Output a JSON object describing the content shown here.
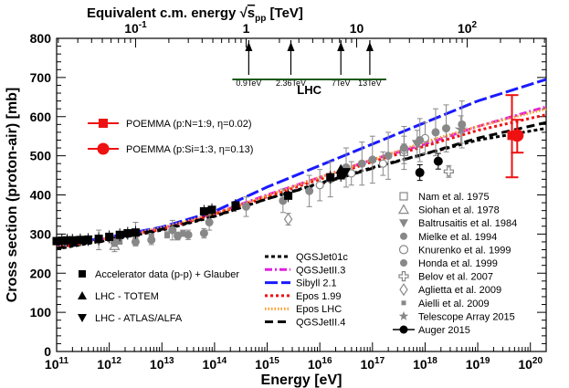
{
  "chart_data": {
    "type": "scatter",
    "title": "",
    "top_axis_label": "Equivalent c.m. energy",
    "top_axis_sqrt": "√",
    "top_axis_s": "s",
    "top_axis_sub": "pp",
    "top_axis_unit": "[TeV]",
    "xlabel": "Energy   [eV]",
    "ylabel": "Cross section (proton-air)  [mb]",
    "x_log_range": [
      11,
      20.3
    ],
    "ylim": [
      0,
      800
    ],
    "y_ticks": [
      "0",
      "100",
      "200",
      "300",
      "400",
      "500",
      "600",
      "700",
      "800"
    ],
    "x_ticks": [
      {
        "base": "10",
        "exp": "11"
      },
      {
        "base": "10",
        "exp": "12"
      },
      {
        "base": "10",
        "exp": "13"
      },
      {
        "base": "10",
        "exp": "14"
      },
      {
        "base": "10",
        "exp": "15"
      },
      {
        "base": "10",
        "exp": "16"
      },
      {
        "base": "10",
        "exp": "17"
      },
      {
        "base": "10",
        "exp": "18"
      },
      {
        "base": "10",
        "exp": "19"
      },
      {
        "base": "10",
        "exp": "20"
      }
    ],
    "top_ticks": [
      {
        "label": "10",
        "exp": "-1",
        "logE": 12.5
      },
      {
        "label": "1",
        "exp": "",
        "logE": 14.6
      },
      {
        "label": "10",
        "exp": "",
        "logE": 16.7
      },
      {
        "label": "10",
        "exp": "2",
        "logE": 18.8
      }
    ],
    "lhc": {
      "label": "LHC",
      "arrows": [
        {
          "label": "0.9TeV",
          "logE": 14.65
        },
        {
          "label": "2.36TeV",
          "logE": 15.45
        },
        {
          "label": "7TeV",
          "logE": 16.4
        },
        {
          "label": "13TeV",
          "logE": 16.95
        }
      ]
    },
    "models": [
      {
        "name": "QGSJet01c",
        "color": "#000000",
        "dash": "4,3",
        "points": [
          [
            11,
            262
          ],
          [
            12,
            285
          ],
          [
            13,
            310
          ],
          [
            14,
            345
          ],
          [
            15,
            390
          ],
          [
            16,
            430
          ],
          [
            17,
            470
          ],
          [
            18,
            505
          ],
          [
            19,
            540
          ],
          [
            20.3,
            570
          ]
        ]
      },
      {
        "name": "QGSJetII.3",
        "color": "#e020e0",
        "dash": "8,3,2,3",
        "points": [
          [
            11,
            268
          ],
          [
            12,
            290
          ],
          [
            13,
            315
          ],
          [
            14,
            352
          ],
          [
            15,
            400
          ],
          [
            16,
            445
          ],
          [
            17,
            490
          ],
          [
            18,
            530
          ],
          [
            19,
            575
          ],
          [
            20.3,
            625
          ]
        ]
      },
      {
        "name": "Sibyll 2.1",
        "color": "#1a1aff",
        "dash": "14,4",
        "points": [
          [
            11,
            270
          ],
          [
            12,
            292
          ],
          [
            13,
            318
          ],
          [
            14,
            358
          ],
          [
            15,
            420
          ],
          [
            16,
            475
          ],
          [
            17,
            530
          ],
          [
            18,
            585
          ],
          [
            19,
            640
          ],
          [
            20.3,
            695
          ]
        ]
      },
      {
        "name": "Epos 1.99",
        "color": "#ee1111",
        "dash": "3,3",
        "points": [
          [
            11,
            265
          ],
          [
            12,
            288
          ],
          [
            13,
            312
          ],
          [
            14,
            350
          ],
          [
            15,
            395
          ],
          [
            16,
            440
          ],
          [
            17,
            485
          ],
          [
            18,
            525
          ],
          [
            19,
            565
          ],
          [
            20.3,
            605
          ]
        ]
      },
      {
        "name": "Epos LHC",
        "color": "#ff9922",
        "dash": "1.5,2",
        "points": [
          [
            11,
            267
          ],
          [
            12,
            290
          ],
          [
            13,
            316
          ],
          [
            14,
            352
          ],
          [
            15,
            398
          ],
          [
            16,
            445
          ],
          [
            17,
            490
          ],
          [
            18,
            535
          ],
          [
            19,
            575
          ],
          [
            20.3,
            620
          ]
        ]
      },
      {
        "name": "QGSJetII.4",
        "color": "#000000",
        "dash": "9,5",
        "points": [
          [
            11,
            263
          ],
          [
            12,
            287
          ],
          [
            13,
            312
          ],
          [
            14,
            346
          ],
          [
            15,
            390
          ],
          [
            16,
            428
          ],
          [
            17,
            468
          ],
          [
            18,
            505
          ],
          [
            19,
            545
          ],
          [
            20.3,
            585
          ]
        ]
      }
    ],
    "measurements": [
      {
        "name": "Nam et al. 1975",
        "marker": "open-square",
        "color": "#888888",
        "points": [
          [
            17.6,
            510,
            20
          ]
        ]
      },
      {
        "name": "Siohan et al. 1978",
        "marker": "open-triangle",
        "color": "#888888",
        "points": [
          [
            12.1,
            270,
            15
          ]
        ]
      },
      {
        "name": "Baltrusaitis et al. 1984",
        "marker": "filled-triangle-down",
        "color": "#888888",
        "points": [
          [
            17.85,
            530,
            35
          ]
        ]
      },
      {
        "name": "Mielke et al. 1994",
        "marker": "filled-circle",
        "color": "#888888",
        "points": [
          [
            12.1,
            278,
            10
          ],
          [
            12.5,
            280,
            10
          ],
          [
            12.8,
            285,
            12
          ],
          [
            13.3,
            295,
            10
          ],
          [
            13.5,
            298,
            12
          ],
          [
            13.8,
            302,
            12
          ]
        ]
      },
      {
        "name": "Knurenko et al. 1999",
        "marker": "open-circle",
        "color": "#888888",
        "points": [
          [
            16.0,
            425,
            40
          ],
          [
            16.6,
            455,
            30
          ],
          [
            17.2,
            480,
            30
          ],
          [
            17.6,
            515,
            35
          ],
          [
            18.0,
            545,
            40
          ]
        ]
      },
      {
        "name": "Honda et al. 1999",
        "marker": "filled-circle",
        "color": "#888888",
        "points": [
          [
            11.8,
            285,
            25
          ],
          [
            12.5,
            300,
            30
          ],
          [
            13.2,
            310,
            25
          ],
          [
            13.9,
            330,
            20
          ],
          [
            14.6,
            370,
            25
          ],
          [
            15.3,
            385,
            30
          ],
          [
            15.8,
            410,
            40
          ],
          [
            16.2,
            440,
            45
          ],
          [
            16.5,
            470,
            50
          ],
          [
            16.8,
            480,
            55
          ],
          [
            17.0,
            490,
            60
          ],
          [
            17.3,
            500,
            60
          ],
          [
            17.6,
            520,
            55
          ],
          [
            17.9,
            540,
            55
          ],
          [
            18.2,
            560,
            60
          ],
          [
            18.4,
            570,
            60
          ],
          [
            18.7,
            580,
            60
          ]
        ]
      },
      {
        "name": "Belov et al. 2007",
        "marker": "open-cross",
        "color": "#888888",
        "points": [
          [
            18.45,
            460,
            15
          ]
        ]
      },
      {
        "name": "Aglietta et al. 2009",
        "marker": "open-diamond",
        "color": "#888888",
        "points": [
          [
            15.4,
            338,
            15
          ]
        ]
      },
      {
        "name": "Aielli et al. 2009",
        "marker": "small-filled-square",
        "color": "#888888",
        "points": [
          [
            12.2,
            282,
            8
          ],
          [
            12.5,
            288,
            8
          ],
          [
            12.8,
            293,
            8
          ],
          [
            13.1,
            298,
            8
          ],
          [
            13.4,
            302,
            8
          ]
        ]
      },
      {
        "name": "Telescope Array 2015",
        "marker": "star",
        "color": "#888888",
        "points": [
          [
            18.68,
            567,
            35
          ]
        ]
      },
      {
        "name": "Auger 2015",
        "marker": "filled-circle-line",
        "color": "#000000",
        "points": [
          [
            17.9,
            457,
            20
          ],
          [
            18.25,
            486,
            20
          ]
        ]
      }
    ],
    "accelerator": {
      "name": "Accelerator data (p-p) + Glauber",
      "points": [
        [
          11,
          282
        ],
        [
          11.1,
          283
        ],
        [
          11.2,
          284
        ],
        [
          11.3,
          284
        ],
        [
          11.45,
          285
        ],
        [
          11.6,
          286
        ],
        [
          11.8,
          288
        ],
        [
          12.0,
          293
        ],
        [
          12.2,
          298
        ],
        [
          12.35,
          302
        ],
        [
          12.5,
          304
        ],
        [
          13.8,
          358
        ],
        [
          13.95,
          362
        ],
        [
          14.4,
          373
        ],
        [
          15.4,
          398
        ],
        [
          16.2,
          445
        ],
        [
          16.4,
          450
        ]
      ]
    },
    "totem": {
      "name": "LHC - TOTEM",
      "points": [
        [
          16.4,
          465
        ]
      ]
    },
    "atlas": {
      "name": "LHC - ATLAS/ALFA",
      "points": [
        [
          16.4,
          458
        ]
      ]
    },
    "poemma": [
      {
        "name": "POEMMA (p:N=1:9, η=0.02)",
        "marker": "square",
        "color": "#ee1111",
        "point": [
          19.65,
          552
        ],
        "yerr": [
          445,
          655
        ]
      },
      {
        "name": "POEMMA (p:Si=1:3, η=0.13)",
        "marker": "circle",
        "color": "#ee1111",
        "point": [
          19.75,
          552
        ],
        "yerr": [
          508,
          592
        ]
      }
    ]
  }
}
